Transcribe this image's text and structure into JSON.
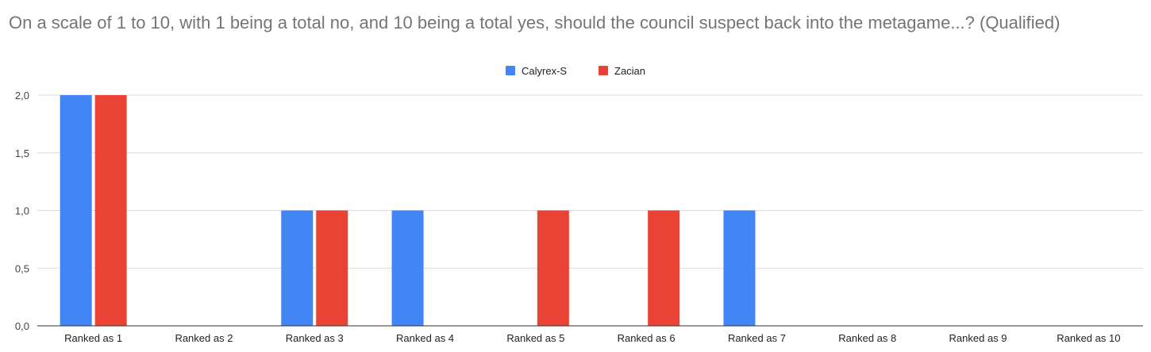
{
  "chart_data": {
    "type": "bar",
    "title": "On a scale of 1 to 10, with 1 being a total no, and 10 being a total yes, should the council suspect back into the metagame...? (Qualified)",
    "categories": [
      "Ranked as 1",
      "Ranked as 2",
      "Ranked as 3",
      "Ranked as 4",
      "Ranked as 5",
      "Ranked as 6",
      "Ranked as 7",
      "Ranked as 8",
      "Ranked as 9",
      "Ranked as 10"
    ],
    "series": [
      {
        "name": "Calyrex-S",
        "color": "#4285f4",
        "values": [
          2,
          0,
          1,
          1,
          0,
          0,
          1,
          0,
          0,
          0
        ]
      },
      {
        "name": "Zacian",
        "color": "#ea4335",
        "values": [
          2,
          0,
          1,
          0,
          1,
          1,
          0,
          0,
          0,
          0
        ]
      }
    ],
    "yticks": [
      "0,0",
      "0,5",
      "1,0",
      "1,5",
      "2,0"
    ],
    "ylim": [
      0,
      2
    ],
    "xlabel": "",
    "ylabel": "",
    "grid": true,
    "legend": "top-center"
  }
}
